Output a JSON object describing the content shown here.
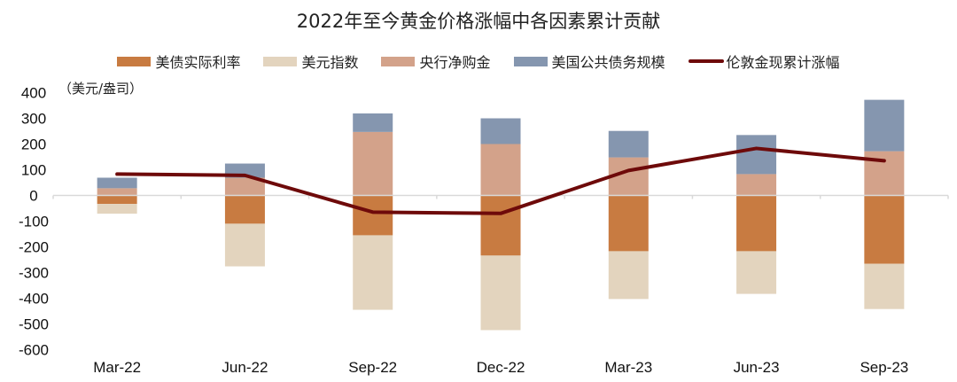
{
  "title": "2022年至今黄金价格涨幅中各因素累计贡献",
  "unit_label": "（美元/盎司）",
  "legend": [
    {
      "label": "美债实际利率",
      "color": "#C87B41",
      "type": "bar"
    },
    {
      "label": "美元指数",
      "color": "#E3D4BE",
      "type": "bar"
    },
    {
      "label": "央行净购金",
      "color": "#D3A28A",
      "type": "bar"
    },
    {
      "label": "美国公共债务规模",
      "color": "#8596AF",
      "type": "bar"
    },
    {
      "label": "伦敦金现累计涨幅",
      "color": "#6E0A0A",
      "type": "line"
    }
  ],
  "chart_data": {
    "type": "bar",
    "stacked": true,
    "title": "2022年至今黄金价格涨幅中各因素累计贡献",
    "xlabel": "",
    "ylabel": "（美元/盎司）",
    "ylim": [
      -600,
      400
    ],
    "yticks": [
      400,
      300,
      200,
      100,
      0,
      -100,
      -200,
      -300,
      -400,
      -500,
      -600
    ],
    "grid": false,
    "legend_position": "top",
    "categories": [
      "Mar-22",
      "Jun-22",
      "Sep-22",
      "Dec-22",
      "Mar-23",
      "Jun-23",
      "Sep-23"
    ],
    "series": [
      {
        "name": "美债实际利率",
        "type": "bar",
        "color": "#C87B41",
        "values": [
          -33,
          -110,
          -155,
          -234,
          -217,
          -217,
          -266
        ]
      },
      {
        "name": "美元指数",
        "type": "bar",
        "color": "#E3D4BE",
        "values": [
          -38,
          -166,
          -290,
          -290,
          -186,
          -166,
          -176
        ]
      },
      {
        "name": "央行净购金",
        "type": "bar",
        "color": "#D3A28A",
        "values": [
          28,
          69,
          247,
          200,
          148,
          83,
          172
        ]
      },
      {
        "name": "美国公共债务规模",
        "type": "bar",
        "color": "#8596AF",
        "values": [
          41,
          55,
          72,
          100,
          103,
          152,
          200
        ]
      },
      {
        "name": "伦敦金现累计涨幅",
        "type": "line",
        "color": "#6E0A0A",
        "values": [
          83,
          78,
          -65,
          -70,
          97,
          183,
          135
        ]
      }
    ]
  }
}
